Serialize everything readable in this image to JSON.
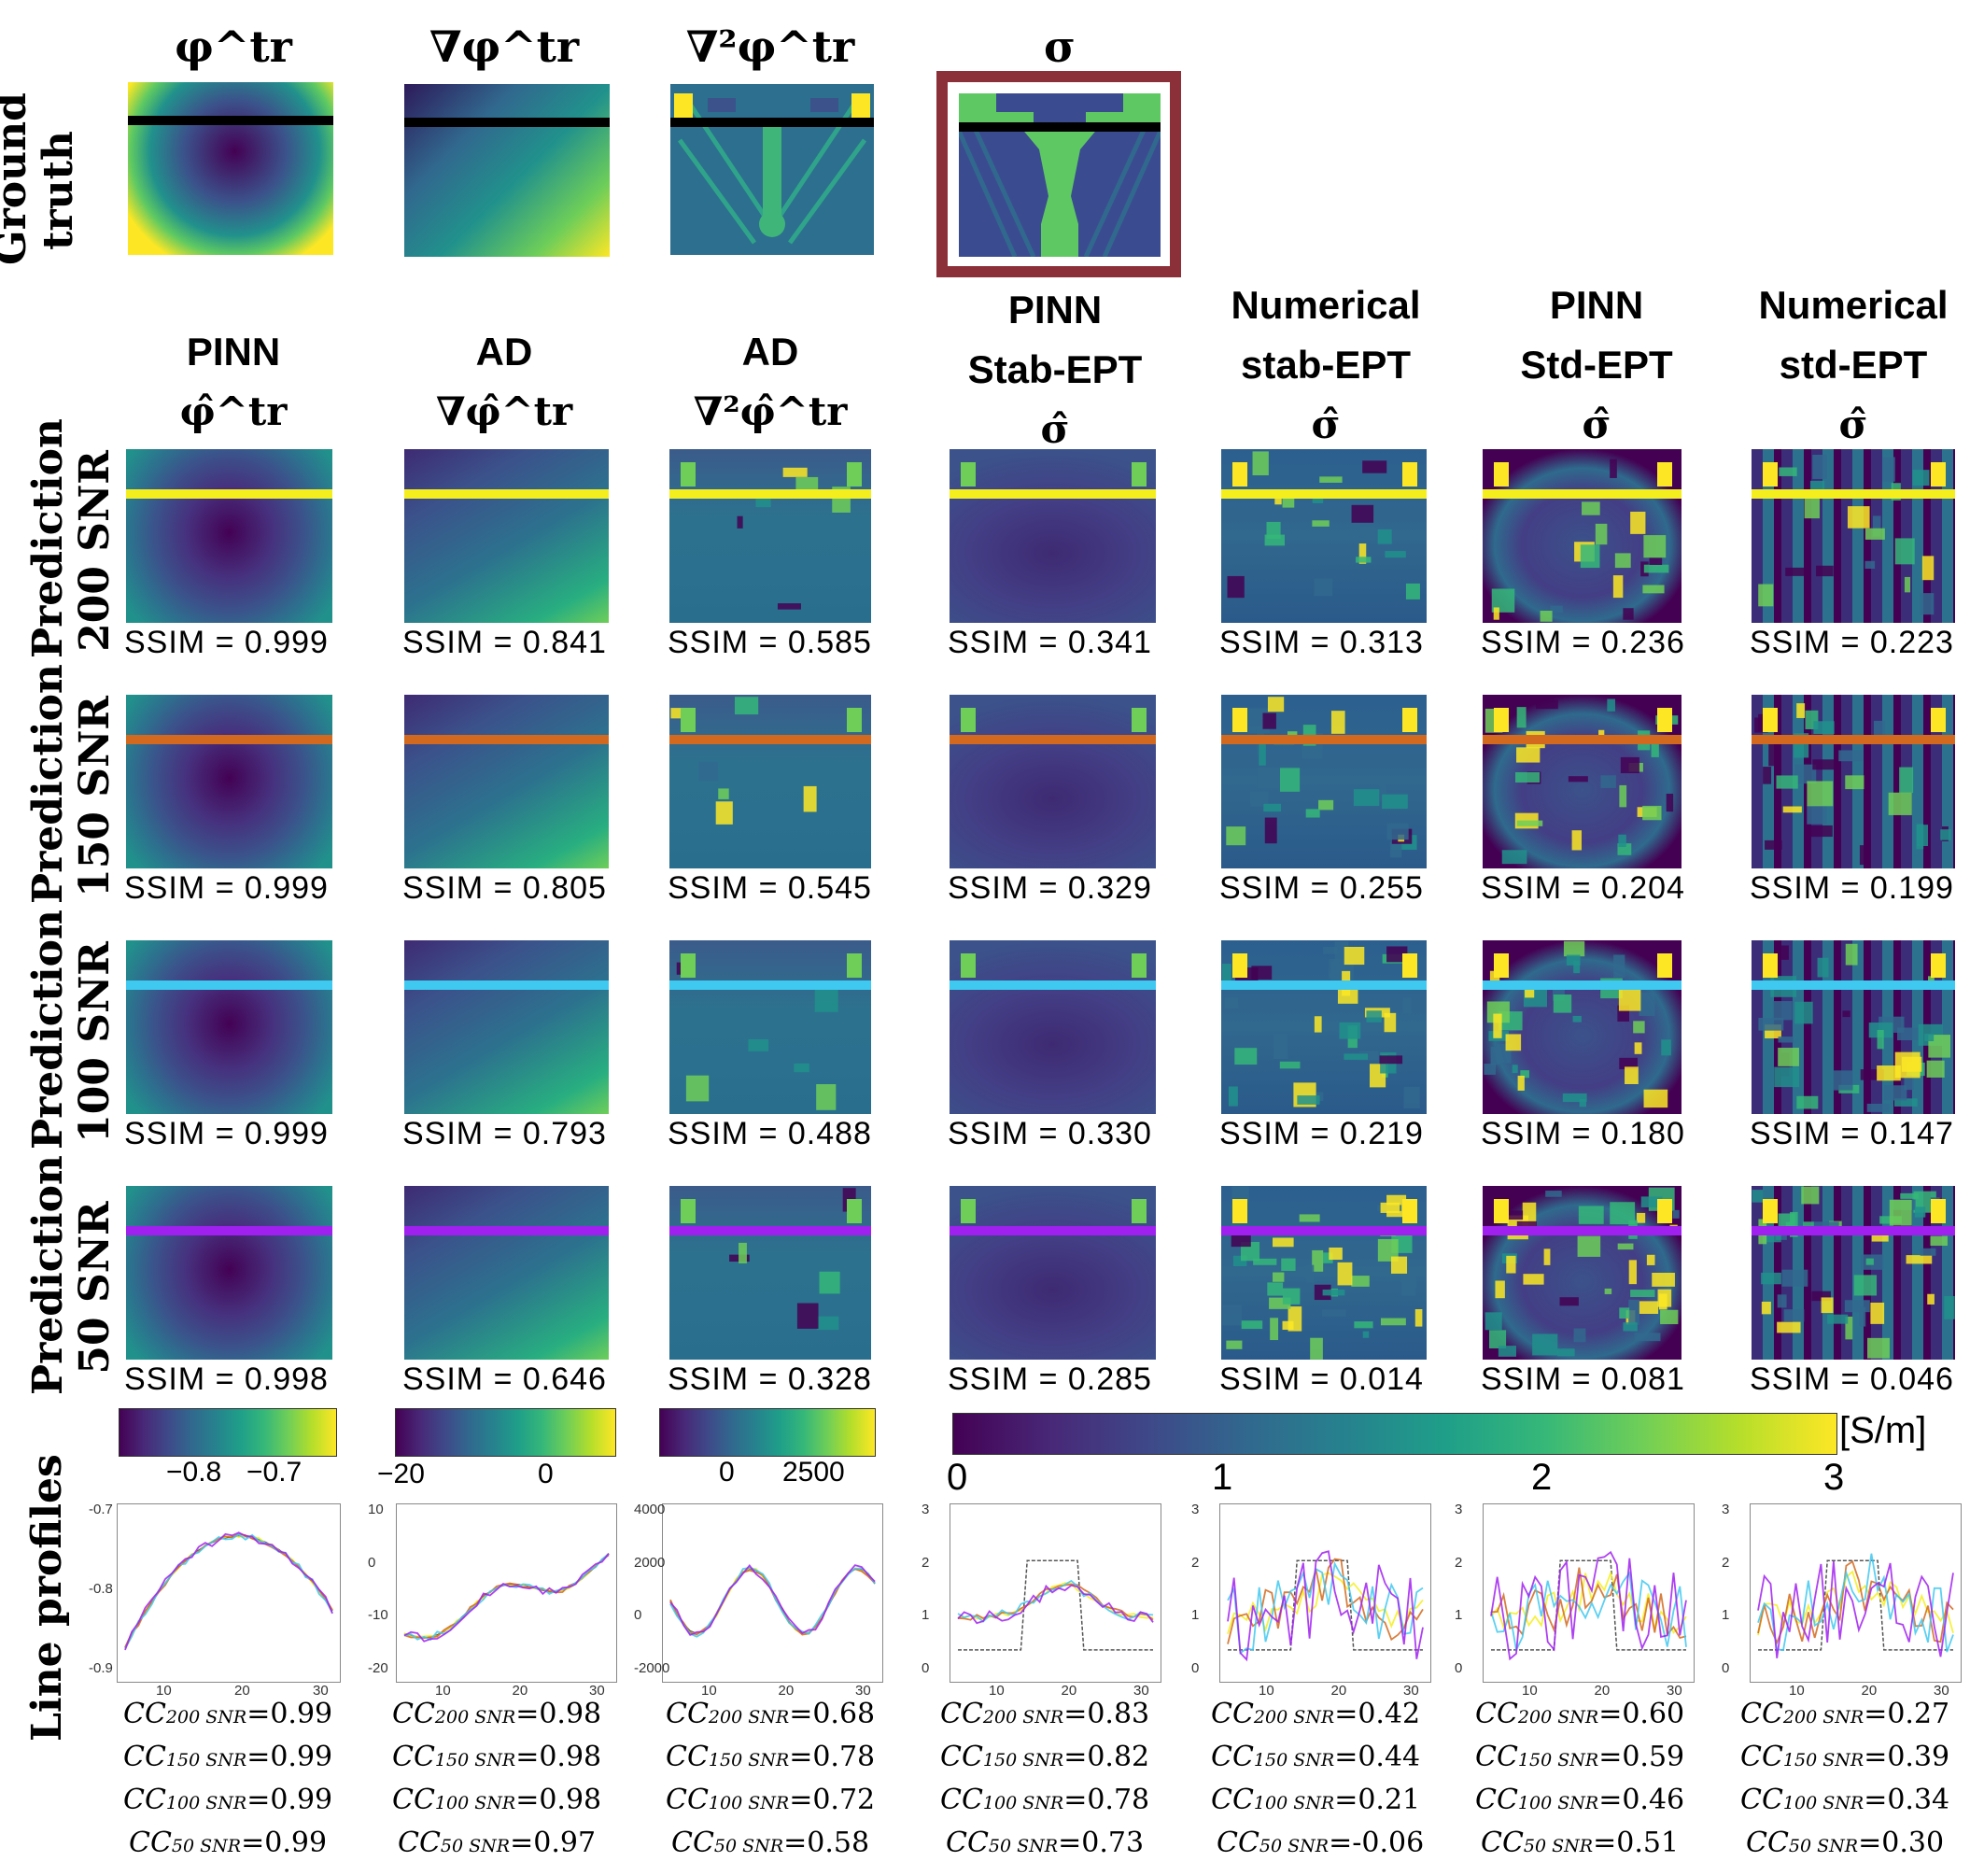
{
  "row_labels": {
    "ground_truth": "Ground truth",
    "pred200": "Prediction 200 SNR",
    "pred150": "Prediction 150 SNR",
    "pred100": "Prediction 100 SNR",
    "pred50": "Prediction 50 SNR",
    "line_profiles": "Line profiles"
  },
  "gt_titles": [
    "φ^tr",
    "∇φ^tr",
    "∇²φ^tr",
    "σ"
  ],
  "col_titles": [
    {
      "l1": "PINN",
      "l2": "",
      "l3": "φ̂^tr"
    },
    {
      "l1": "AD",
      "l2": "",
      "l3": "∇φ̂^tr"
    },
    {
      "l1": "AD",
      "l2": "",
      "l3": "∇²φ̂^tr"
    },
    {
      "l1": "PINN",
      "l2": "Stab-EPT",
      "l3": "σ̂"
    },
    {
      "l1": "Numerical",
      "l2": "stab-EPT",
      "l3": "σ̂"
    },
    {
      "l1": "PINN",
      "l2": "Std-EPT",
      "l3": "σ̂"
    },
    {
      "l1": "Numerical",
      "l2": "std-EPT",
      "l3": "σ̂"
    }
  ],
  "ssim": {
    "r200": [
      "SSIM = 0.999",
      "SSIM = 0.841",
      "SSIM = 0.585",
      "SSIM = 0.341",
      "SSIM = 0.313",
      "SSIM = 0.236",
      "SSIM = 0.223"
    ],
    "r150": [
      "SSIM = 0.999",
      "SSIM = 0.805",
      "SSIM = 0.545",
      "SSIM = 0.329",
      "SSIM = 0.255",
      "SSIM = 0.204",
      "SSIM = 0.199"
    ],
    "r100": [
      "SSIM = 0.999",
      "SSIM = 0.793",
      "SSIM = 0.488",
      "SSIM = 0.330",
      "SSIM = 0.219",
      "SSIM = 0.180",
      "SSIM = 0.147"
    ],
    "r50": [
      "SSIM = 0.998",
      "SSIM = 0.646",
      "SSIM = 0.328",
      "SSIM = 0.285",
      "SSIM = 0.014",
      "SSIM = 0.081",
      "SSIM = 0.046"
    ]
  },
  "colorbars": {
    "c1": [
      "−0.8",
      "−0.7"
    ],
    "c2": [
      "−20",
      "0"
    ],
    "c3": [
      "0",
      "2500"
    ],
    "sigma": [
      "0",
      "1",
      "2",
      "3"
    ],
    "sigma_unit": "[S/m]"
  },
  "profile_ticks": {
    "p1_y": [
      "-0.7",
      "-0.8",
      "-0.9"
    ],
    "p2_y": [
      "10",
      "0",
      "-10",
      "-20"
    ],
    "p3_y": [
      "4000",
      "2000",
      "0",
      "-2000"
    ],
    "sig_y": [
      "3",
      "2",
      "1",
      "0"
    ],
    "x": [
      "10",
      "20",
      "30"
    ]
  },
  "cc": [
    {
      "c200": "=0.99",
      "c150": "=0.99",
      "c100": "=0.99",
      "c50": "=0.99"
    },
    {
      "c200": "=0.98",
      "c150": "=0.98",
      "c100": "=0.98",
      "c50": "=0.97"
    },
    {
      "c200": "=0.68",
      "c150": "=0.78",
      "c100": "=0.72",
      "c50": "=0.58"
    },
    {
      "c200": "=0.83",
      "c150": "=0.82",
      "c100": "=0.78",
      "c50": "=0.73"
    },
    {
      "c200": "=0.42",
      "c150": "=0.44",
      "c100": "=0.21",
      "c50": "=-0.06"
    },
    {
      "c200": "=0.60",
      "c150": "=0.59",
      "c100": "=0.46",
      "c50": "=0.51"
    },
    {
      "c200": "=0.27",
      "c150": "=0.39",
      "c100": "=0.34",
      "c50": "=0.30"
    }
  ],
  "cc_labels": {
    "s200": "200 SNR",
    "s150": "150 SNR",
    "s100": "100 SNR",
    "s50": "50 SNR",
    "prefix": "CC"
  },
  "line_colors": {
    "ground_truth": "#000000",
    "snr200": "#f5ee1f",
    "snr150": "#d2691e",
    "snr100": "#3fc8f0",
    "snr50": "#a020f0",
    "frame": "#8b3039"
  }
}
